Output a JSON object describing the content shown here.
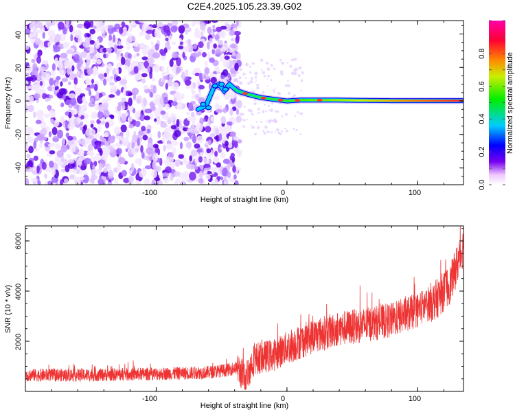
{
  "title": "C2E4.2025.105.23.39.G02",
  "chart_data": [
    {
      "type": "heatmap",
      "xlabel": "Height of straight line (km)",
      "ylabel": "Frequency (Hz)",
      "xlim": [
        -200,
        135
      ],
      "ylim": [
        -50,
        48
      ],
      "xticks": [
        -100,
        0,
        100
      ],
      "xtick_labels": [
        "-100",
        "0",
        "100"
      ],
      "yticks": [
        40,
        20,
        0,
        -20,
        -40
      ],
      "ytick_labels": [
        "40",
        "20",
        "0",
        "-20",
        "-40"
      ],
      "colorbar": {
        "label": "Normalized spectral amplitude",
        "range": [
          0.0,
          1.0
        ],
        "ticks": [
          0.0,
          0.2,
          0.4,
          0.6,
          0.8
        ],
        "tick_labels": [
          "0.0",
          "0.2",
          "0.4",
          "0.6",
          "0.8"
        ]
      },
      "ridge": {
        "x": [
          -68,
          -62,
          -56,
          -52,
          -48,
          -44,
          -38,
          -30,
          -20,
          -10,
          0,
          10,
          20,
          40,
          60,
          80,
          100,
          120,
          134
        ],
        "y": [
          -5,
          -3,
          8,
          10,
          6,
          10,
          6,
          4,
          2,
          1,
          0,
          0.5,
          0.5,
          0.5,
          0.3,
          0.2,
          0.2,
          0.2,
          0.2
        ]
      },
      "noise_region_x": [
        -200,
        -38
      ]
    },
    {
      "type": "line",
      "xlabel": "Height of straight line (km)",
      "ylabel": "SNR (10 * v/v)",
      "xlim": [
        -200,
        135
      ],
      "ylim": [
        0,
        6600
      ],
      "xticks": [
        -100,
        0,
        100
      ],
      "xtick_labels": [
        "-100",
        "0",
        "100"
      ],
      "yticks": [
        2000,
        4000,
        6000
      ],
      "ytick_labels": [
        "2000",
        "4000",
        "6000"
      ],
      "color": "#ee3333",
      "series": [
        {
          "x": [
            -200,
            -180,
            -160,
            -140,
            -120,
            -100,
            -80,
            -60,
            -45,
            -38,
            -32,
            -25,
            -10,
            0,
            20,
            40,
            60,
            80,
            100,
            115,
            125,
            135
          ],
          "values": [
            650,
            650,
            650,
            660,
            680,
            700,
            720,
            760,
            860,
            950,
            500,
            1300,
            1450,
            1750,
            2200,
            2500,
            2650,
            2850,
            3250,
            3700,
            4300,
            5800
          ]
        }
      ]
    }
  ]
}
